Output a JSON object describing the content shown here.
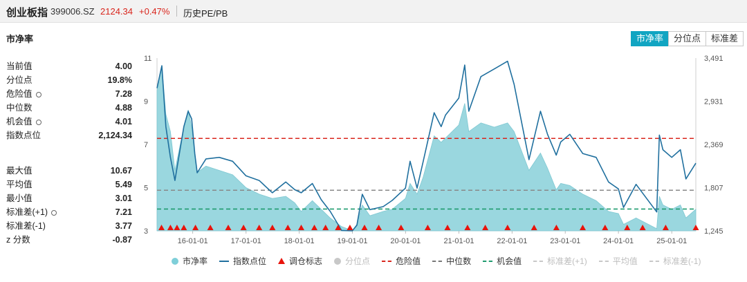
{
  "header": {
    "title": "创业板指",
    "code": "399006.SZ",
    "price": "2124.34",
    "change": "+0.47%",
    "subtitle": "历史PE/PB"
  },
  "section_title": "市净率",
  "tabs": [
    {
      "label": "市净率",
      "active": true
    },
    {
      "label": "分位点",
      "active": false
    },
    {
      "label": "标准差",
      "active": false
    }
  ],
  "stats_top": [
    {
      "label": "当前值",
      "value": "4.00",
      "gear": false
    },
    {
      "label": "分位点",
      "value": "19.8%",
      "gear": false
    },
    {
      "label": "危险值",
      "value": "7.28",
      "gear": true
    },
    {
      "label": "中位数",
      "value": "4.88",
      "gear": false
    },
    {
      "label": "机会值",
      "value": "4.01",
      "gear": true
    },
    {
      "label": "指数点位",
      "value": "2,124.34",
      "gear": false
    }
  ],
  "stats_bottom": [
    {
      "label": "最大值",
      "value": "10.67",
      "gear": false
    },
    {
      "label": "平均值",
      "value": "5.49",
      "gear": false
    },
    {
      "label": "最小值",
      "value": "3.01",
      "gear": false
    },
    {
      "label": "标准差(+1)",
      "value": "7.21",
      "gear": true
    },
    {
      "label": "标准差(-1)",
      "value": "3.77",
      "gear": false
    },
    {
      "label": "z 分数",
      "value": "-0.87",
      "gear": false
    }
  ],
  "colors": {
    "area": "#8fd3dc",
    "index_line": "#1f6f9e",
    "danger": "#d9251c",
    "median": "#888888",
    "opportunity": "#1e9b6f",
    "marker": "#e8140c",
    "accent": "#11a5c2"
  },
  "chart_data": {
    "type": "area",
    "x_ticks": [
      "16-01-01",
      "17-01-01",
      "18-01-01",
      "19-01-01",
      "20-01-01",
      "21-01-01",
      "22-01-01",
      "23-01-01",
      "24-01-01",
      "25-01-01"
    ],
    "x_tick_dates": [
      "2016-01-01",
      "2017-01-01",
      "2018-01-01",
      "2019-01-01",
      "2020-01-01",
      "2021-01-01",
      "2022-01-01",
      "2023-01-01",
      "2024-01-01",
      "2025-01-01"
    ],
    "x_range": [
      "2015-05-01",
      "2025-06-15"
    ],
    "y_left_ticks": [
      "3",
      "5",
      "7",
      "9",
      "11"
    ],
    "y_left_range": [
      3,
      11
    ],
    "y_right_ticks": [
      "1,245",
      "1,807",
      "2,369",
      "2,931",
      "3,491"
    ],
    "y_right_range": [
      1245,
      3491
    ],
    "reference_lines": {
      "danger": 7.28,
      "median": 4.88,
      "opportunity": 4.01
    },
    "series": [
      {
        "name": "市净率",
        "axis": "left",
        "style": "area",
        "points": [
          [
            "2015-05-01",
            9.5
          ],
          [
            "2015-06-03",
            10.67
          ],
          [
            "2015-07-01",
            8.4
          ],
          [
            "2015-08-01",
            7.6
          ],
          [
            "2015-09-01",
            5.8
          ],
          [
            "2015-11-01",
            7.8
          ],
          [
            "2015-12-01",
            8.6
          ],
          [
            "2015-12-25",
            7.8
          ],
          [
            "2016-01-15",
            6.6
          ],
          [
            "2016-02-01",
            5.7
          ],
          [
            "2016-04-01",
            6.0
          ],
          [
            "2016-07-01",
            5.8
          ],
          [
            "2016-10-01",
            5.6
          ],
          [
            "2017-01-01",
            5.0
          ],
          [
            "2017-04-01",
            4.7
          ],
          [
            "2017-07-01",
            4.5
          ],
          [
            "2017-10-01",
            4.6
          ],
          [
            "2017-12-01",
            4.3
          ],
          [
            "2018-01-15",
            3.9
          ],
          [
            "2018-04-01",
            4.4
          ],
          [
            "2018-06-01",
            4.0
          ],
          [
            "2018-08-01",
            3.6
          ],
          [
            "2018-10-19",
            3.2
          ],
          [
            "2018-12-31",
            3.01
          ],
          [
            "2019-02-01",
            3.3
          ],
          [
            "2019-03-10",
            4.2
          ],
          [
            "2019-05-01",
            3.7
          ],
          [
            "2019-08-01",
            3.9
          ],
          [
            "2019-10-01",
            4.0
          ],
          [
            "2019-12-31",
            4.5
          ],
          [
            "2020-02-01",
            5.2
          ],
          [
            "2020-03-20",
            4.7
          ],
          [
            "2020-05-01",
            5.5
          ],
          [
            "2020-07-15",
            7.4
          ],
          [
            "2020-09-01",
            7.1
          ],
          [
            "2020-10-01",
            7.3
          ],
          [
            "2020-12-31",
            7.9
          ],
          [
            "2021-02-10",
            8.9
          ],
          [
            "2021-03-10",
            7.6
          ],
          [
            "2021-06-01",
            8.0
          ],
          [
            "2021-09-01",
            7.8
          ],
          [
            "2021-12-01",
            8.0
          ],
          [
            "2022-01-15",
            7.6
          ],
          [
            "2022-04-27",
            5.8
          ],
          [
            "2022-07-15",
            6.6
          ],
          [
            "2022-09-01",
            5.9
          ],
          [
            "2022-10-31",
            4.9
          ],
          [
            "2022-12-01",
            5.2
          ],
          [
            "2023-02-01",
            5.1
          ],
          [
            "2023-05-01",
            4.7
          ],
          [
            "2023-08-01",
            4.4
          ],
          [
            "2023-10-25",
            3.9
          ],
          [
            "2024-01-01",
            3.8
          ],
          [
            "2024-02-05",
            3.3
          ],
          [
            "2024-05-01",
            3.6
          ],
          [
            "2024-09-20",
            3.1
          ],
          [
            "2024-10-08",
            4.6
          ],
          [
            "2024-11-01",
            4.2
          ],
          [
            "2025-01-01",
            4.0
          ],
          [
            "2025-03-01",
            4.2
          ],
          [
            "2025-04-08",
            3.6
          ],
          [
            "2025-06-15",
            4.0
          ]
        ]
      },
      {
        "name": "指数点位",
        "axis": "right",
        "style": "line",
        "points": [
          [
            "2015-05-01",
            3100
          ],
          [
            "2015-06-03",
            3390
          ],
          [
            "2015-07-01",
            2600
          ],
          [
            "2015-08-01",
            2200
          ],
          [
            "2015-09-01",
            1900
          ],
          [
            "2015-11-01",
            2600
          ],
          [
            "2015-12-01",
            2800
          ],
          [
            "2015-12-25",
            2700
          ],
          [
            "2016-01-15",
            2250
          ],
          [
            "2016-02-01",
            2000
          ],
          [
            "2016-04-01",
            2180
          ],
          [
            "2016-07-01",
            2200
          ],
          [
            "2016-10-01",
            2150
          ],
          [
            "2017-01-01",
            1960
          ],
          [
            "2017-04-01",
            1900
          ],
          [
            "2017-07-01",
            1740
          ],
          [
            "2017-10-01",
            1880
          ],
          [
            "2017-12-01",
            1780
          ],
          [
            "2018-01-15",
            1740
          ],
          [
            "2018-04-01",
            1860
          ],
          [
            "2018-06-01",
            1650
          ],
          [
            "2018-08-01",
            1500
          ],
          [
            "2018-10-19",
            1250
          ],
          [
            "2018-12-31",
            1245
          ],
          [
            "2019-02-01",
            1320
          ],
          [
            "2019-03-10",
            1720
          ],
          [
            "2019-05-01",
            1520
          ],
          [
            "2019-08-01",
            1560
          ],
          [
            "2019-10-01",
            1640
          ],
          [
            "2019-12-31",
            1800
          ],
          [
            "2020-02-01",
            2150
          ],
          [
            "2020-03-20",
            1800
          ],
          [
            "2020-05-01",
            2150
          ],
          [
            "2020-07-15",
            2780
          ],
          [
            "2020-09-01",
            2600
          ],
          [
            "2020-10-01",
            2750
          ],
          [
            "2020-12-31",
            2970
          ],
          [
            "2021-02-10",
            3400
          ],
          [
            "2021-03-10",
            2800
          ],
          [
            "2021-06-01",
            3250
          ],
          [
            "2021-09-01",
            3350
          ],
          [
            "2021-12-01",
            3450
          ],
          [
            "2022-01-15",
            3150
          ],
          [
            "2022-04-27",
            2170
          ],
          [
            "2022-07-15",
            2800
          ],
          [
            "2022-09-01",
            2500
          ],
          [
            "2022-10-31",
            2230
          ],
          [
            "2022-12-01",
            2400
          ],
          [
            "2023-02-01",
            2500
          ],
          [
            "2023-05-01",
            2250
          ],
          [
            "2023-08-01",
            2200
          ],
          [
            "2023-10-25",
            1880
          ],
          [
            "2024-01-01",
            1790
          ],
          [
            "2024-02-05",
            1550
          ],
          [
            "2024-05-01",
            1850
          ],
          [
            "2024-09-20",
            1490
          ],
          [
            "2024-10-08",
            2490
          ],
          [
            "2024-11-01",
            2300
          ],
          [
            "2025-01-01",
            2200
          ],
          [
            "2025-03-01",
            2300
          ],
          [
            "2025-04-08",
            1920
          ],
          [
            "2025-06-15",
            2124.34
          ]
        ]
      }
    ],
    "rebalance_markers": [
      "2015-06-01",
      "2015-08-01",
      "2015-09-15",
      "2015-11-01",
      "2016-01-20",
      "2016-05-01",
      "2016-09-01",
      "2016-12-15",
      "2017-04-01",
      "2017-07-01",
      "2017-10-15",
      "2018-01-15",
      "2018-04-15",
      "2018-07-01",
      "2018-09-25",
      "2018-12-15",
      "2019-03-25",
      "2019-07-01",
      "2019-12-01",
      "2020-06-01",
      "2020-10-15",
      "2021-03-01",
      "2021-07-01",
      "2021-12-01",
      "2022-06-01",
      "2022-11-01",
      "2023-05-01",
      "2023-10-01",
      "2024-03-01",
      "2024-06-15",
      "2024-11-20",
      "2025-06-15"
    ],
    "legend": [
      {
        "label": "市净率",
        "marker": "dot",
        "color": "#7fcfd9",
        "active": true
      },
      {
        "label": "指数点位",
        "marker": "line",
        "color": "#1f6f9e",
        "active": true
      },
      {
        "label": "调仓标志",
        "marker": "triangle",
        "color": "#e8140c",
        "active": true
      },
      {
        "label": "分位点",
        "marker": "dot",
        "color": "#c8c8c8",
        "active": false
      },
      {
        "label": "危险值",
        "marker": "dash",
        "color": "#d9251c",
        "active": true
      },
      {
        "label": "中位数",
        "marker": "dash",
        "color": "#777777",
        "active": true
      },
      {
        "label": "机会值",
        "marker": "dash",
        "color": "#1e9b6f",
        "active": true
      },
      {
        "label": "标准差(+1)",
        "marker": "dash",
        "color": "#c8c8c8",
        "active": false
      },
      {
        "label": "平均值",
        "marker": "dash",
        "color": "#c8c8c8",
        "active": false
      },
      {
        "label": "标准差(-1)",
        "marker": "dash",
        "color": "#c8c8c8",
        "active": false
      }
    ]
  }
}
